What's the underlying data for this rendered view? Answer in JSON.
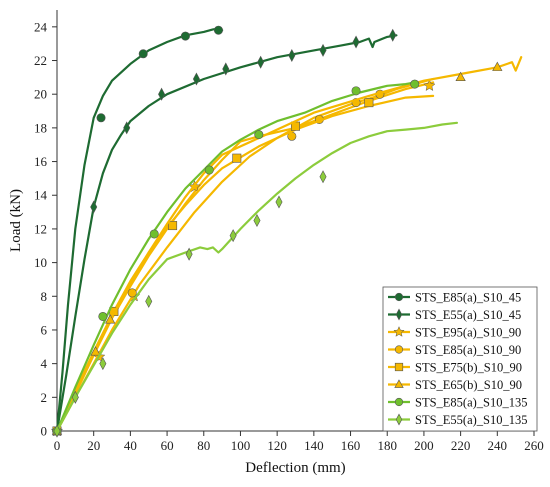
{
  "chart_data": {
    "type": "line",
    "xlabel": "Deflection (mm)",
    "ylabel": "Load (kN)",
    "xlim": [
      0,
      260
    ],
    "ylim": [
      0,
      25
    ],
    "xticks": [
      0,
      20,
      40,
      60,
      80,
      100,
      120,
      140,
      160,
      180,
      200,
      220,
      240,
      260
    ],
    "yticks": [
      0,
      2,
      4,
      6,
      8,
      10,
      12,
      14,
      16,
      18,
      20,
      22,
      24
    ],
    "grid": false,
    "legend_position": "bottom-right",
    "series": [
      {
        "name": "STS_E85(a)_S10_45",
        "color": "#1e6b32",
        "marker": "circle",
        "x": [
          0,
          3,
          6,
          10,
          15,
          20,
          25,
          30,
          40,
          50,
          60,
          70,
          80,
          85,
          88,
          90
        ],
        "y": [
          0,
          3.5,
          7.5,
          12,
          15.8,
          18.6,
          19.9,
          20.8,
          21.8,
          22.6,
          23.1,
          23.5,
          23.7,
          23.85,
          23.9,
          23.8
        ],
        "markers": [
          [
            0,
            0
          ],
          [
            24,
            18.6
          ],
          [
            47,
            22.4
          ],
          [
            70,
            23.45
          ],
          [
            88,
            23.8
          ]
        ]
      },
      {
        "name": "STS_E55(a)_S10_45",
        "color": "#1e6b32",
        "marker": "diamond",
        "x": [
          0,
          5,
          10,
          15,
          20,
          25,
          30,
          35,
          40,
          50,
          60,
          80,
          100,
          120,
          140,
          155,
          165,
          170,
          172,
          173,
          180,
          185
        ],
        "y": [
          0,
          3.3,
          6.8,
          10.2,
          13.3,
          15.3,
          16.7,
          17.6,
          18.4,
          19.3,
          20.0,
          20.9,
          21.6,
          22.2,
          22.6,
          22.9,
          23.1,
          23.3,
          22.8,
          23.1,
          23.4,
          23.5
        ],
        "markers": [
          [
            0,
            0
          ],
          [
            20,
            13.3
          ],
          [
            38,
            18.0
          ],
          [
            57,
            20.0
          ],
          [
            76,
            20.9
          ],
          [
            92,
            21.5
          ],
          [
            111,
            21.9
          ],
          [
            128,
            22.3
          ],
          [
            145,
            22.6
          ],
          [
            163,
            23.1
          ],
          [
            183,
            23.5
          ]
        ]
      },
      {
        "name": "STS_E95(a)_S10_90",
        "color": "#f5b800",
        "marker": "star",
        "x": [
          0,
          10,
          20,
          30,
          40,
          50,
          60,
          70,
          80,
          90,
          100,
          110,
          130,
          150,
          170,
          190,
          205
        ],
        "y": [
          0,
          2.2,
          4.5,
          6.7,
          8.6,
          10.4,
          12.0,
          13.5,
          14.9,
          16.1,
          17.2,
          17.5,
          18.0,
          18.8,
          19.6,
          20.3,
          20.7
        ],
        "markers": [
          [
            0,
            0
          ],
          [
            23,
            4.4
          ],
          [
            42,
            8.0
          ],
          [
            75,
            14.5
          ],
          [
            203,
            20.5
          ]
        ]
      },
      {
        "name": "STS_E85(a)_S10_90",
        "color": "#f5b800",
        "marker": "circle",
        "x": [
          0,
          15,
          30,
          45,
          60,
          75,
          90,
          105,
          120,
          140,
          160,
          175,
          185,
          195,
          205
        ],
        "y": [
          0,
          3.0,
          6.0,
          8.7,
          10.9,
          13.0,
          14.8,
          16.3,
          17.4,
          18.6,
          19.4,
          19.9,
          20.3,
          20.6,
          20.9
        ],
        "markers": [
          [
            0,
            0
          ],
          [
            41,
            8.2
          ],
          [
            128,
            17.5
          ],
          [
            143,
            18.5
          ],
          [
            163,
            19.5
          ],
          [
            176,
            20.0
          ]
        ]
      },
      {
        "name": "STS_E75(b)_S10_90",
        "color": "#f5b800",
        "marker": "square",
        "x": [
          0,
          10,
          20,
          30,
          40,
          50,
          60,
          70,
          80,
          90,
          110,
          130,
          150,
          170,
          190,
          205
        ],
        "y": [
          0,
          2.4,
          4.7,
          6.9,
          8.9,
          10.6,
          12.1,
          13.4,
          14.6,
          15.6,
          16.9,
          17.9,
          18.7,
          19.3,
          19.8,
          19.9
        ],
        "markers": [
          [
            0,
            0
          ],
          [
            31,
            7.1
          ],
          [
            63,
            12.2
          ],
          [
            98,
            16.2
          ],
          [
            130,
            18.1
          ],
          [
            170,
            19.5
          ]
        ]
      },
      {
        "name": "STS_E65(b)_S10_90",
        "color": "#f5b800",
        "marker": "triangle",
        "x": [
          0,
          10,
          20,
          30,
          40,
          50,
          60,
          70,
          80,
          90,
          110,
          140,
          170,
          200,
          220,
          240,
          248,
          250,
          253
        ],
        "y": [
          0,
          2.3,
          4.6,
          6.8,
          8.7,
          10.6,
          12.3,
          13.9,
          15.3,
          16.4,
          17.4,
          18.9,
          19.9,
          20.8,
          21.2,
          21.6,
          21.9,
          21.4,
          22.2
        ],
        "markers": [
          [
            0,
            0
          ],
          [
            21,
            4.7
          ],
          [
            29,
            6.6
          ],
          [
            220,
            21.0
          ],
          [
            240,
            21.6
          ]
        ]
      },
      {
        "name": "STS_E85(a)_S10_135",
        "color": "#6fbf2e",
        "marker": "circle",
        "x": [
          0,
          10,
          20,
          30,
          40,
          50,
          60,
          70,
          80,
          90,
          100,
          110,
          120,
          135,
          150,
          165,
          180,
          190,
          195
        ],
        "y": [
          0,
          2.6,
          5.1,
          7.5,
          9.6,
          11.4,
          13.0,
          14.4,
          15.5,
          16.6,
          17.3,
          17.9,
          18.4,
          18.9,
          19.6,
          20.1,
          20.5,
          20.6,
          20.7
        ],
        "markers": [
          [
            0,
            0
          ],
          [
            25,
            6.8
          ],
          [
            53,
            11.7
          ],
          [
            83,
            15.5
          ],
          [
            110,
            17.6
          ],
          [
            163,
            20.2
          ],
          [
            195,
            20.6
          ]
        ]
      },
      {
        "name": "STS_E55(a)_S10_135",
        "color": "#8ccc3c",
        "marker": "diamond",
        "x": [
          0,
          10,
          20,
          30,
          40,
          50,
          60,
          70,
          78,
          82,
          85,
          88,
          90,
          95,
          100,
          110,
          120,
          130,
          140,
          150,
          160,
          170,
          180,
          190,
          200,
          210,
          218
        ],
        "y": [
          0,
          2.0,
          3.9,
          5.8,
          7.5,
          9.0,
          10.2,
          10.6,
          10.9,
          10.8,
          10.9,
          10.6,
          10.8,
          11.4,
          12.0,
          13.1,
          14.1,
          15.0,
          15.8,
          16.5,
          17.1,
          17.5,
          17.8,
          17.9,
          18.0,
          18.2,
          18.3
        ],
        "markers": [
          [
            0,
            0
          ],
          [
            10,
            2.0
          ],
          [
            25,
            4.0
          ],
          [
            50,
            7.7
          ],
          [
            72,
            10.5
          ],
          [
            96,
            11.6
          ],
          [
            109,
            12.5
          ],
          [
            121,
            13.6
          ],
          [
            145,
            15.1
          ]
        ]
      }
    ]
  }
}
